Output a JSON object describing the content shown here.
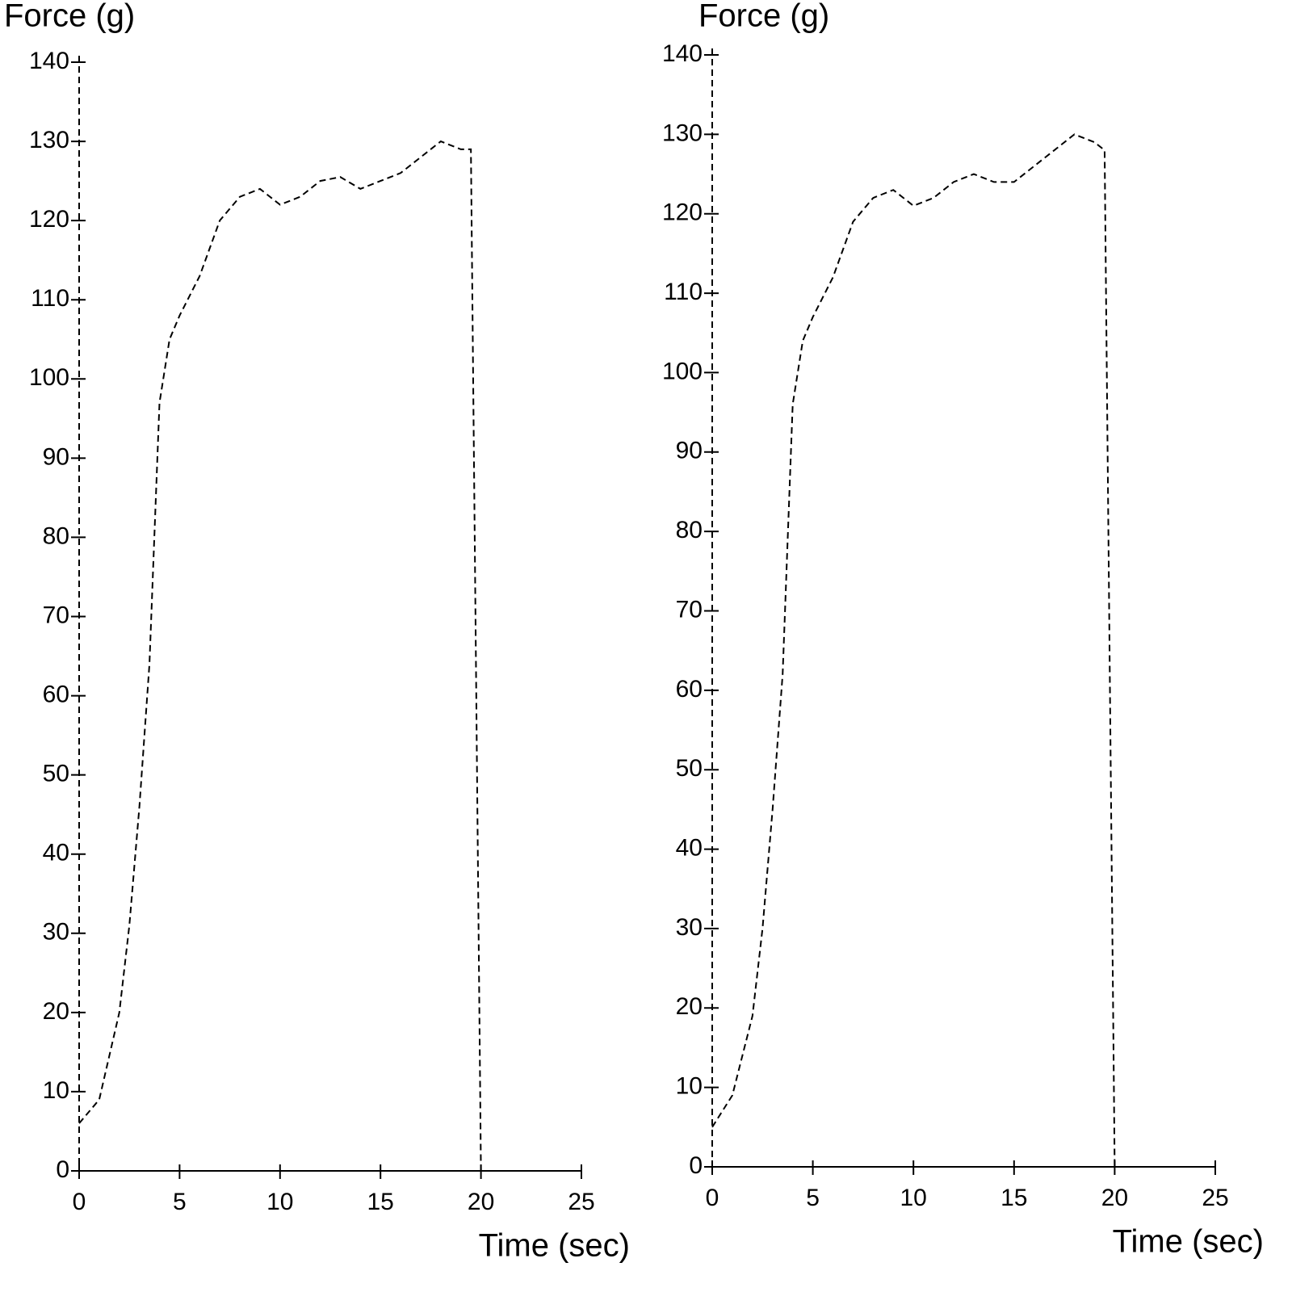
{
  "chart_data": [
    {
      "type": "line",
      "y_label": "Force (g)",
      "x_label": "Time (sec)",
      "x": [
        0,
        1,
        2,
        2.5,
        3,
        3.5,
        4,
        4.5,
        5,
        6,
        7,
        8,
        9,
        10,
        11,
        12,
        13,
        14,
        15,
        16,
        17,
        18,
        19,
        19.5,
        20
      ],
      "series": [
        {
          "name": "Force",
          "color": "#000000",
          "dashed": true,
          "values": [
            6,
            9,
            20,
            31,
            46,
            64,
            97,
            105,
            108,
            113,
            120,
            123,
            124,
            122,
            123,
            125,
            125.5,
            124,
            125,
            126,
            128,
            130,
            129,
            129,
            0
          ]
        }
      ],
      "xlim": [
        0,
        25
      ],
      "xticks": [
        0,
        5,
        10,
        15,
        20,
        25
      ],
      "ylim": [
        0,
        140
      ],
      "yticks": [
        0,
        10,
        20,
        30,
        40,
        50,
        60,
        70,
        80,
        90,
        100,
        110,
        120,
        130,
        140
      ]
    },
    {
      "type": "line",
      "y_label": "Force (g)",
      "x_label": "Time (sec)",
      "x": [
        0,
        1,
        2,
        2.5,
        3,
        3.5,
        4,
        4.5,
        5,
        6,
        7,
        8,
        9,
        10,
        11,
        12,
        13,
        14,
        15,
        16,
        17,
        18,
        19,
        19.5,
        20
      ],
      "series": [
        {
          "name": "Force",
          "color": "#000000",
          "dashed": true,
          "values": [
            5,
            9,
            19,
            30,
            45,
            62,
            96,
            104,
            107,
            112,
            119,
            122,
            123,
            121,
            122,
            124,
            125,
            124,
            124,
            126,
            128,
            130,
            129,
            128,
            0
          ]
        }
      ],
      "xlim": [
        0,
        25
      ],
      "xticks": [
        0,
        5,
        10,
        15,
        20,
        25
      ],
      "ylim": [
        0,
        140
      ],
      "yticks": [
        0,
        10,
        20,
        30,
        40,
        50,
        60,
        70,
        80,
        90,
        100,
        110,
        120,
        130,
        140
      ]
    }
  ]
}
